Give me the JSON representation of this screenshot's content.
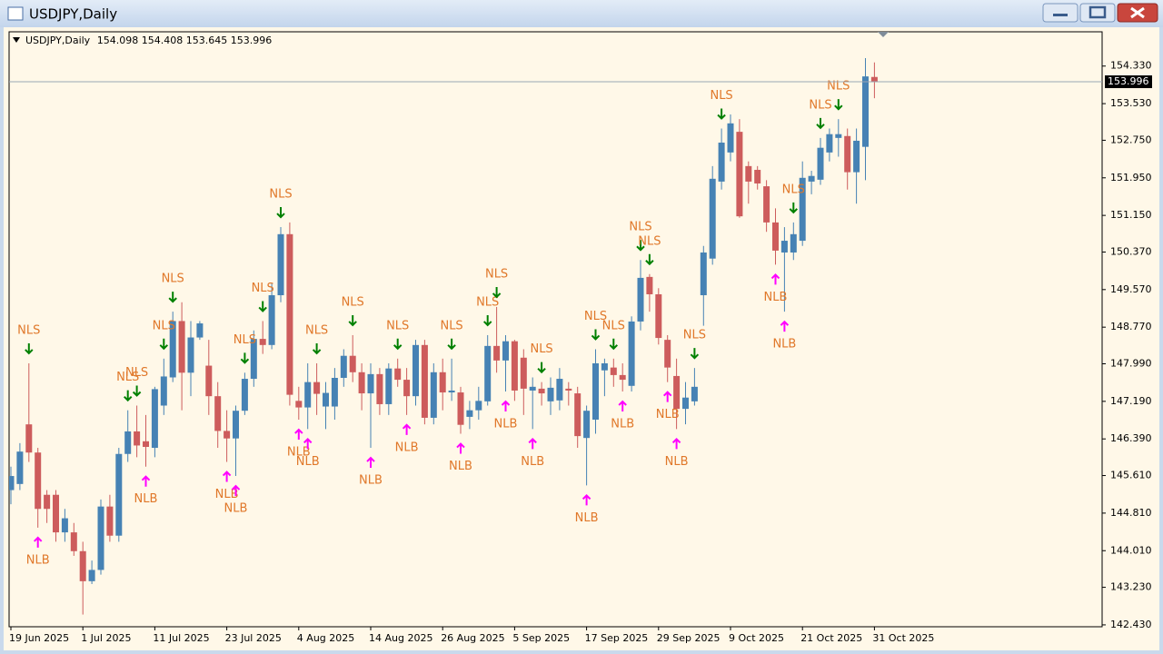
{
  "chart_data": {
    "type": "candlestick",
    "title": "USDJPY,Daily",
    "categories": [
      "19 Jun 2025",
      null,
      null,
      null,
      null,
      null,
      null,
      null,
      "1 Jul 2025",
      null,
      null,
      null,
      null,
      null,
      null,
      null,
      "11 Jul 2025",
      null,
      null,
      null,
      null,
      null,
      null,
      null,
      "23 Jul 2025",
      null,
      null,
      null,
      null,
      null,
      null,
      null,
      "4 Aug 2025",
      null,
      null,
      null,
      null,
      null,
      null,
      null,
      "14 Aug 2025",
      null,
      null,
      null,
      null,
      null,
      null,
      null,
      "26 Aug 2025",
      null,
      null,
      null,
      null,
      null,
      null,
      null,
      "5 Sep 2025",
      null,
      null,
      null,
      null,
      null,
      null,
      null,
      "17 Sep 2025",
      null,
      null,
      null,
      null,
      null,
      null,
      null,
      "29 Sep 2025",
      null,
      null,
      null,
      null,
      null,
      null,
      null,
      "9 Oct 2025",
      null,
      null,
      null,
      null,
      null,
      null,
      null,
      "21 Oct 2025",
      null,
      null,
      null,
      null,
      null,
      null,
      null,
      "31 Oct 2025"
    ],
    "open": [
      145.3,
      145.43,
      146.7,
      146.1,
      145.2,
      145.2,
      144.4,
      144.4,
      144.0,
      143.36,
      143.6,
      144.95,
      144.33,
      146.07,
      146.55,
      146.34,
      146.2,
      147.1,
      147.7,
      148.9,
      147.8,
      148.55,
      147.95,
      147.3,
      146.56,
      146.4,
      146.99,
      147.67,
      148.52,
      148.39,
      149.45,
      150.75,
      147.2,
      147.06,
      147.6,
      147.08,
      147.08,
      147.69,
      148.16,
      147.81,
      147.36,
      147.77,
      147.13,
      147.89,
      147.65,
      147.3,
      148.39,
      146.84,
      147.81,
      147.38,
      147.38,
      146.86,
      147.0,
      147.19,
      148.37,
      148.06,
      148.47,
      148.12,
      147.42,
      147.46,
      147.19,
      147.21,
      147.46,
      147.36,
      146.41,
      146.8,
      147.85,
      147.91,
      147.75,
      147.52,
      148.89,
      149.84,
      149.47,
      148.5,
      147.73,
      147.03,
      147.19,
      149.45,
      150.23,
      151.87,
      152.49,
      152.93,
      152.2,
      152.12,
      151.77,
      151.0,
      150.36,
      150.36,
      150.61,
      151.87,
      151.91,
      152.49,
      152.8,
      152.84,
      152.07,
      152.61,
      154.098
    ],
    "high": [
      145.8,
      146.3,
      148.0,
      146.2,
      145.3,
      145.3,
      144.9,
      144.6,
      144.2,
      143.8,
      145.1,
      145.2,
      146.2,
      147.0,
      147.1,
      146.9,
      147.5,
      148.1,
      149.1,
      149.3,
      148.9,
      148.9,
      148.5,
      147.6,
      147.0,
      147.1,
      147.8,
      148.7,
      148.9,
      149.7,
      150.9,
      151.0,
      147.5,
      148.0,
      148.0,
      147.6,
      147.9,
      148.3,
      148.6,
      148.0,
      148.0,
      147.9,
      148.0,
      148.1,
      147.9,
      148.5,
      148.5,
      148.0,
      148.1,
      148.1,
      147.5,
      147.2,
      147.5,
      148.6,
      149.2,
      148.6,
      148.5,
      148.3,
      147.7,
      147.6,
      147.7,
      147.9,
      147.6,
      147.5,
      147.1,
      148.3,
      148.1,
      148.1,
      148.0,
      149.0,
      150.2,
      149.9,
      149.6,
      148.6,
      148.1,
      147.6,
      147.9,
      150.5,
      152.2,
      153.0,
      153.3,
      153.2,
      152.3,
      152.2,
      151.9,
      151.3,
      150.9,
      151.0,
      152.3,
      152.1,
      152.8,
      153.0,
      153.2,
      153.0,
      153.0,
      154.5,
      154.408
    ],
    "low": [
      145.0,
      145.3,
      145.9,
      144.5,
      144.6,
      144.2,
      144.2,
      143.9,
      142.65,
      143.3,
      143.5,
      144.2,
      144.2,
      145.9,
      146.0,
      145.8,
      146.0,
      146.9,
      147.6,
      147.0,
      147.3,
      148.5,
      146.9,
      146.2,
      145.9,
      145.6,
      146.9,
      147.5,
      148.2,
      148.3,
      149.3,
      147.1,
      146.8,
      146.6,
      146.9,
      146.6,
      146.8,
      147.5,
      147.6,
      147.0,
      146.2,
      146.9,
      146.9,
      147.5,
      146.9,
      147.1,
      146.7,
      146.7,
      147.0,
      147.2,
      146.5,
      146.6,
      146.8,
      147.1,
      147.8,
      147.4,
      147.2,
      146.9,
      146.6,
      147.1,
      146.9,
      147.0,
      147.1,
      146.2,
      145.4,
      146.5,
      147.3,
      147.5,
      147.4,
      147.4,
      148.7,
      149.1,
      148.4,
      147.6,
      146.6,
      146.7,
      147.1,
      148.8,
      150.1,
      151.7,
      152.3,
      151.1,
      151.4,
      151.7,
      150.8,
      150.1,
      149.1,
      150.2,
      150.5,
      151.6,
      151.8,
      152.3,
      152.4,
      151.7,
      151.4,
      151.9,
      153.645
    ],
    "close": [
      145.6,
      146.12,
      146.1,
      144.9,
      144.9,
      144.4,
      144.7,
      144.0,
      143.36,
      143.6,
      144.95,
      144.33,
      146.07,
      146.55,
      146.25,
      146.22,
      147.45,
      147.72,
      148.9,
      147.8,
      148.55,
      148.85,
      147.3,
      146.56,
      146.4,
      146.99,
      147.67,
      148.52,
      148.39,
      149.45,
      150.75,
      147.33,
      147.06,
      147.6,
      147.35,
      147.37,
      147.69,
      148.16,
      147.81,
      147.36,
      147.77,
      147.13,
      147.89,
      147.65,
      147.3,
      148.39,
      146.84,
      147.81,
      147.38,
      147.42,
      146.69,
      147.0,
      147.2,
      148.37,
      148.06,
      148.47,
      147.42,
      147.46,
      147.5,
      147.36,
      147.48,
      147.67,
      147.42,
      146.45,
      146.99,
      148.0,
      148.0,
      147.75,
      147.65,
      148.89,
      149.82,
      149.47,
      148.54,
      147.91,
      147.03,
      147.27,
      147.5,
      150.36,
      151.93,
      152.7,
      153.11,
      151.13,
      151.87,
      151.83,
      151.0,
      150.4,
      150.61,
      150.75,
      151.95,
      151.99,
      152.59,
      152.88,
      152.88,
      152.07,
      152.74,
      154.11,
      153.996
    ],
    "up_color": "#4682b4",
    "down_color": "#cd5c5c",
    "ylim": [
      142.39,
      155.06
    ],
    "yticks": [
      {
        "value": 154.33,
        "label": "154.330"
      },
      {
        "value": 153.53,
        "label": "153.530"
      },
      {
        "value": 152.75,
        "label": "152.750"
      },
      {
        "value": 151.95,
        "label": "151.950"
      },
      {
        "value": 151.15,
        "label": "151.150"
      },
      {
        "value": 150.37,
        "label": "150.370"
      },
      {
        "value": 149.57,
        "label": "149.570"
      },
      {
        "value": 148.77,
        "label": "148.770"
      },
      {
        "value": 147.99,
        "label": "147.990"
      },
      {
        "value": 147.19,
        "label": "147.190"
      },
      {
        "value": 146.39,
        "label": "146.390"
      },
      {
        "value": 145.61,
        "label": "145.610"
      },
      {
        "value": 144.81,
        "label": "144.810"
      },
      {
        "value": 144.01,
        "label": "144.010"
      },
      {
        "value": 143.23,
        "label": "143.230"
      },
      {
        "value": 142.43,
        "label": "142.430"
      }
    ],
    "grid": false,
    "signals": {
      "sell": {
        "label": "NLS",
        "arrow_color": "#008000",
        "label_color": "#e0782a",
        "bars": [
          2,
          13,
          14,
          17,
          18,
          26,
          28,
          30,
          34,
          38,
          43,
          49,
          53,
          54,
          59,
          65,
          67,
          70,
          71,
          76,
          79,
          87,
          90,
          92
        ]
      },
      "buy": {
        "label": "NLB",
        "arrow_color": "#ff00ff",
        "label_color": "#e0782a",
        "bars": [
          3,
          15,
          24,
          25,
          32,
          33,
          40,
          44,
          50,
          55,
          58,
          64,
          68,
          73,
          74,
          85,
          86
        ]
      }
    }
  }
}
